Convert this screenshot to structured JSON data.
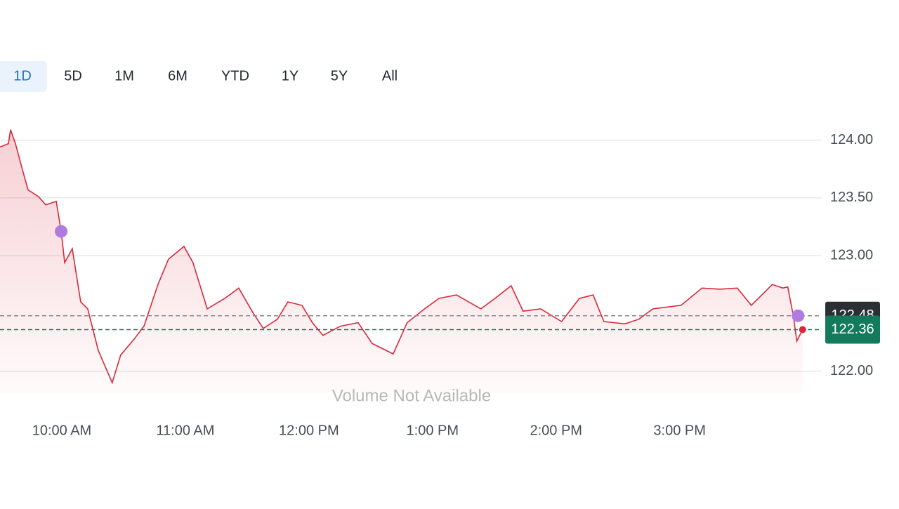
{
  "ui": {
    "ranges": [
      "1D",
      "5D",
      "1M",
      "6M",
      "YTD",
      "1Y",
      "5Y",
      "All"
    ],
    "selected": 0
  },
  "chart_data": {
    "type": "line",
    "x": [
      570,
      574.1,
      575.1,
      577.5,
      580.2,
      583.6,
      588.8,
      592.2,
      597.3,
      599.7,
      601.4,
      605.1,
      609.2,
      612.6,
      617.7,
      624.5,
      628.6,
      634.8,
      639.9,
      646.7,
      651.8,
      659.3,
      663.7,
      670.6,
      679.1,
      685.9,
      692.7,
      697.8,
      704.7,
      709.8,
      716.6,
      721.7,
      726.8,
      735.3,
      743.9,
      750.7,
      760.9,
      767.7,
      776.2,
      783.1,
      791.6,
      803.5,
      810.3,
      818.2,
      824,
      832.5,
      842.7,
      851.3,
      858,
      863.2,
      873.4,
      880.2,
      887,
      900.7,
      910.9,
      919.4,
      928,
      934.8,
      945,
      950.1,
      952.5,
      955.2,
      956.9,
      959.7
    ],
    "series": [
      {
        "color": "#d9283a",
        "values": [
          123.94,
          123.97,
          124.09,
          123.97,
          123.79,
          123.57,
          123.51,
          123.44,
          123.47,
          123.21,
          122.94,
          123.06,
          122.6,
          122.54,
          122.18,
          121.9,
          122.14,
          122.27,
          122.39,
          122.75,
          122.97,
          123.08,
          122.94,
          122.54,
          122.63,
          122.72,
          122.51,
          122.37,
          122.45,
          122.6,
          122.57,
          122.42,
          122.31,
          122.39,
          122.42,
          122.24,
          122.15,
          122.42,
          122.54,
          122.63,
          122.66,
          122.54,
          122.63,
          122.74,
          122.52,
          122.54,
          122.43,
          122.63,
          122.66,
          122.43,
          122.41,
          122.45,
          122.54,
          122.57,
          122.72,
          122.71,
          122.72,
          122.57,
          122.75,
          122.72,
          122.73,
          122.48,
          122.26,
          122.36
        ]
      }
    ],
    "xlim": [
      570,
      969
    ],
    "ylim": [
      121.81,
      124.18
    ],
    "xticks": [
      {
        "value": 600,
        "label": "10:00 AM"
      },
      {
        "value": 660,
        "label": "11:00 AM"
      },
      {
        "value": 720,
        "label": "12:00 PM"
      },
      {
        "value": 780,
        "label": "1:00 PM"
      },
      {
        "value": 840,
        "label": "2:00 PM"
      },
      {
        "value": 900,
        "label": "3:00 PM"
      }
    ],
    "yticks": [
      {
        "value": 122,
        "label": "122.00"
      },
      {
        "value": 123,
        "label": "123.00"
      },
      {
        "value": 123.5,
        "label": "123.50"
      },
      {
        "value": 124,
        "label": "124.00"
      }
    ],
    "grid": true,
    "reference_lines": [
      {
        "value": 122.48,
        "label": "122.48",
        "color": "#8a8a8a",
        "tag_color": "#2b2f33"
      },
      {
        "value": 122.36,
        "label": "122.36",
        "color": "#137a5c",
        "tag_color": "#137a5c"
      }
    ],
    "events": [
      {
        "x": 599.7,
        "value": 123.21,
        "color": "#b07be0"
      },
      {
        "x": 957.5,
        "value": 122.48,
        "color": "#b07be0"
      }
    ],
    "annotation": "Volume Not Available"
  }
}
